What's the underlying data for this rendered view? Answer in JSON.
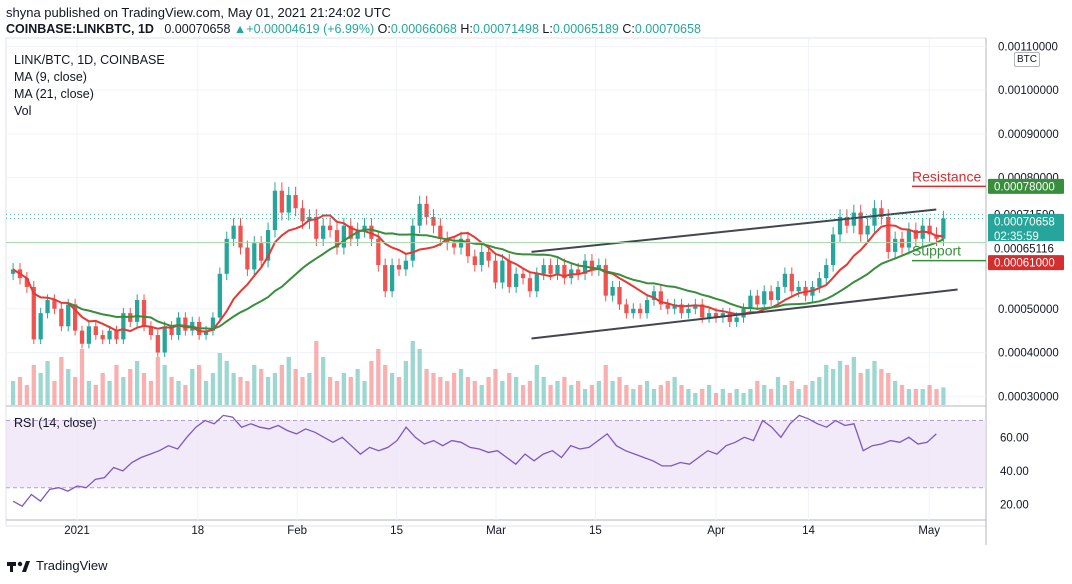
{
  "header": {
    "published": "shyna published on TradingView.com, May 01, 2021 21:24:02 UTC",
    "symbol_line": "COINBASE:LINKBTC, 1D",
    "last": "0.00070658",
    "change": "+0.00004619 (+6.99%)",
    "o_label": "O:",
    "o": "0.00066068",
    "h_label": "H:",
    "h": "0.00071498",
    "l_label": "L:",
    "l": "0.00065189",
    "c_label": "C:",
    "c": "0.00070658"
  },
  "legend": {
    "title": "LINK/BTC, 1D, COINBASE",
    "ma9": "MA (9, close)",
    "ma21": "MA (21, close)",
    "vol": "Vol",
    "rsi": "RSI (14, close)"
  },
  "currency_box": "BTC",
  "footer": {
    "brand": "TradingView"
  },
  "colors": {
    "up": "#26a69a",
    "down": "#ef5350",
    "ma9": "#e53935",
    "ma21": "#388e3c",
    "trendline": "#434651",
    "rsi": "#7e57c2",
    "rsi_band": "#ede1f7",
    "resistance": "#d32f2f",
    "support": "#388e3c"
  },
  "chart_data": {
    "type": "candlestick",
    "y_axis": {
      "ticks": [
        {
          "value": 0.0011,
          "label": "0.00110000"
        },
        {
          "value": 0.001,
          "label": "0.00100000"
        },
        {
          "value": 0.0009,
          "label": "0.00090000"
        },
        {
          "value": 0.0008,
          "label": "0.00080000"
        },
        {
          "value": 0.0005,
          "label": "0.00050000"
        },
        {
          "value": 0.0004,
          "label": "0.00040000"
        },
        {
          "value": 0.0003,
          "label": "0.00030000"
        }
      ],
      "range": [
        0.00028,
        0.00111
      ]
    },
    "x_axis": {
      "range_days": [
        -10,
        128
      ],
      "ticks": [
        {
          "day": 0,
          "label": "2021"
        },
        {
          "day": 17,
          "label": "18"
        },
        {
          "day": 31,
          "label": "Feb"
        },
        {
          "day": 45,
          "label": "15"
        },
        {
          "day": 59,
          "label": "Mar"
        },
        {
          "day": 73,
          "label": "15"
        },
        {
          "day": 90,
          "label": "Apr"
        },
        {
          "day": 103,
          "label": "14"
        },
        {
          "day": 120,
          "label": "May"
        }
      ]
    },
    "price_badges": [
      {
        "value": 0.00078,
        "label": "0.00078000",
        "bg": "#388e3c",
        "fg": "#ffffff"
      },
      {
        "value": 0.0007159,
        "label": "0.00071590",
        "bg": "#ffffff",
        "fg": "#131722"
      },
      {
        "value": 0.00070658,
        "label": "0.00070658",
        "sub": "02:35:59",
        "bg": "#26a69a",
        "fg": "#ffffff"
      },
      {
        "value": 0.00065116,
        "label": "0.00065116",
        "bg": "#ffffff",
        "fg": "#131722"
      },
      {
        "value": 0.00061,
        "label": "0.00061000",
        "bg": "#d32f2f",
        "fg": "#ffffff"
      }
    ],
    "annotations": [
      {
        "text": "Resistance",
        "value": 0.00078,
        "color": "#d32f2f"
      },
      {
        "text": "Support",
        "value": 0.00061,
        "color": "#388e3c"
      }
    ],
    "trendlines": [
      {
        "from": {
          "day": 64,
          "value": 0.00063
        },
        "to": {
          "day": 121,
          "value": 0.000727
        }
      },
      {
        "from": {
          "day": 64,
          "value": 0.000432
        },
        "to": {
          "day": 124,
          "value": 0.000544
        }
      }
    ],
    "candles": [
      [
        0.00058,
        0.00059
      ],
      [
        0.00059,
        0.00057
      ],
      [
        0.00057,
        0.00055
      ],
      [
        0.00055,
        0.00043
      ],
      [
        0.00043,
        0.00049
      ],
      [
        0.00049,
        0.00052
      ],
      [
        0.00052,
        0.0005
      ],
      [
        0.0005,
        0.00046
      ],
      [
        0.00046,
        0.00051
      ],
      [
        0.00051,
        0.00045
      ],
      [
        0.00045,
        0.00042
      ],
      [
        0.00042,
        0.00046
      ],
      [
        0.00046,
        0.00044
      ],
      [
        0.00044,
        0.00043
      ],
      [
        0.00043,
        0.00045
      ],
      [
        0.00045,
        0.00043
      ],
      [
        0.00043,
        0.00049
      ],
      [
        0.00049,
        0.00047
      ],
      [
        0.00047,
        0.00052
      ],
      [
        0.00052,
        0.00046
      ],
      [
        0.00046,
        0.00044
      ],
      [
        0.00044,
        0.0004
      ],
      [
        0.0004,
        0.00046
      ],
      [
        0.00046,
        0.00044
      ],
      [
        0.00044,
        0.00048
      ],
      [
        0.00048,
        0.00045
      ],
      [
        0.00045,
        0.00047
      ],
      [
        0.00047,
        0.00044
      ],
      [
        0.00044,
        0.00045
      ],
      [
        0.00045,
        0.00048
      ],
      [
        0.00048,
        0.00058
      ],
      [
        0.00058,
        0.00066
      ],
      [
        0.00066,
        0.00069
      ],
      [
        0.00069,
        0.00064
      ],
      [
        0.00064,
        0.00059
      ],
      [
        0.00059,
        0.00065
      ],
      [
        0.00065,
        0.00061
      ],
      [
        0.00061,
        0.00068
      ],
      [
        0.00068,
        0.00077
      ],
      [
        0.00077,
        0.00072
      ],
      [
        0.00072,
        0.00076
      ],
      [
        0.00076,
        0.00073
      ],
      [
        0.00073,
        0.0007
      ],
      [
        0.0007,
        0.00071
      ],
      [
        0.00071,
        0.00066
      ],
      [
        0.00066,
        0.00069
      ],
      [
        0.00069,
        0.00068
      ],
      [
        0.00068,
        0.00064
      ],
      [
        0.00064,
        0.00069
      ],
      [
        0.00069,
        0.00066
      ],
      [
        0.00066,
        0.00068
      ],
      [
        0.00068,
        0.00069
      ],
      [
        0.00069,
        0.00066
      ],
      [
        0.00066,
        0.0006
      ],
      [
        0.0006,
        0.00054
      ],
      [
        0.00054,
        0.0006
      ],
      [
        0.0006,
        0.00059
      ],
      [
        0.00059,
        0.00061
      ],
      [
        0.00061,
        0.00069
      ],
      [
        0.00069,
        0.00074
      ],
      [
        0.00074,
        0.00071
      ],
      [
        0.00071,
        0.00069
      ],
      [
        0.00069,
        0.00066
      ],
      [
        0.00066,
        0.00065
      ],
      [
        0.00065,
        0.00064
      ],
      [
        0.00064,
        0.00066
      ],
      [
        0.00066,
        0.00062
      ],
      [
        0.00062,
        0.0006
      ],
      [
        0.0006,
        0.00063
      ],
      [
        0.00063,
        0.00061
      ],
      [
        0.00061,
        0.00056
      ],
      [
        0.00056,
        0.00061
      ],
      [
        0.00061,
        0.00055
      ],
      [
        0.00055,
        0.00058
      ],
      [
        0.00058,
        0.00057
      ],
      [
        0.00057,
        0.00054
      ],
      [
        0.00054,
        0.00058
      ],
      [
        0.00058,
        0.0006
      ],
      [
        0.0006,
        0.00058
      ],
      [
        0.00058,
        0.0006
      ],
      [
        0.0006,
        0.00057
      ],
      [
        0.00057,
        0.00059
      ],
      [
        0.00059,
        0.00058
      ],
      [
        0.00058,
        0.00061
      ],
      [
        0.00061,
        0.00059
      ],
      [
        0.00059,
        0.0006
      ],
      [
        0.0006,
        0.00053
      ],
      [
        0.00053,
        0.00055
      ],
      [
        0.00055,
        0.00051
      ],
      [
        0.00051,
        0.00049
      ],
      [
        0.00049,
        0.0005
      ],
      [
        0.0005,
        0.00049
      ],
      [
        0.00049,
        0.00052
      ],
      [
        0.00052,
        0.00054
      ],
      [
        0.00054,
        0.00051
      ],
      [
        0.00051,
        0.0005
      ],
      [
        0.0005,
        0.00051
      ],
      [
        0.00051,
        0.00049
      ],
      [
        0.00049,
        0.0005
      ],
      [
        0.0005,
        0.00051
      ],
      [
        0.00051,
        0.00048
      ],
      [
        0.00048,
        0.00049
      ],
      [
        0.00049,
        0.00048
      ],
      [
        0.00048,
        0.00049
      ],
      [
        0.00049,
        0.00047
      ],
      [
        0.00047,
        0.00048
      ],
      [
        0.00048,
        0.0005
      ],
      [
        0.0005,
        0.00053
      ],
      [
        0.00053,
        0.00051
      ],
      [
        0.00051,
        0.00054
      ],
      [
        0.00054,
        0.00052
      ],
      [
        0.00052,
        0.00055
      ],
      [
        0.00055,
        0.00058
      ],
      [
        0.00058,
        0.00054
      ],
      [
        0.00054,
        0.00055
      ],
      [
        0.00055,
        0.00053
      ],
      [
        0.00053,
        0.00055
      ],
      [
        0.00055,
        0.00057
      ],
      [
        0.00057,
        0.0006
      ],
      [
        0.0006,
        0.00067
      ],
      [
        0.00067,
        0.00071
      ],
      [
        0.00071,
        0.00069
      ],
      [
        0.00069,
        0.00072
      ],
      [
        0.00072,
        0.00067
      ],
      [
        0.00067,
        0.00069
      ],
      [
        0.00069,
        0.00073
      ],
      [
        0.00073,
        0.00071
      ],
      [
        0.00071,
        0.00063
      ],
      [
        0.00063,
        0.00066
      ],
      [
        0.00066,
        0.00064
      ],
      [
        0.00064,
        0.00068
      ],
      [
        0.00068,
        0.00066
      ],
      [
        0.00066,
        0.00069
      ],
      [
        0.00069,
        0.00067
      ],
      [
        0.00067,
        0.00066
      ],
      [
        0.00066,
        0.00070658
      ]
    ],
    "volume": [
      0.3,
      0.35,
      0.25,
      0.5,
      0.4,
      0.55,
      0.3,
      0.6,
      0.45,
      0.35,
      0.7,
      0.3,
      0.25,
      0.4,
      0.3,
      0.5,
      0.35,
      0.45,
      0.55,
      0.4,
      0.3,
      0.6,
      0.5,
      0.35,
      0.3,
      0.25,
      0.45,
      0.5,
      0.3,
      0.4,
      0.65,
      0.55,
      0.4,
      0.35,
      0.3,
      0.5,
      0.45,
      0.35,
      0.4,
      0.5,
      0.6,
      0.45,
      0.35,
      0.4,
      0.8,
      0.6,
      0.35,
      0.3,
      0.4,
      0.35,
      0.45,
      0.3,
      0.55,
      0.7,
      0.5,
      0.4,
      0.35,
      0.55,
      0.8,
      0.7,
      0.45,
      0.4,
      0.35,
      0.3,
      0.4,
      0.45,
      0.35,
      0.3,
      0.25,
      0.35,
      0.45,
      0.3,
      0.4,
      0.35,
      0.25,
      0.3,
      0.5,
      0.35,
      0.25,
      0.3,
      0.35,
      0.25,
      0.3,
      0.2,
      0.25,
      0.3,
      0.5,
      0.3,
      0.35,
      0.25,
      0.2,
      0.25,
      0.3,
      0.2,
      0.25,
      0.3,
      0.35,
      0.25,
      0.2,
      0.15,
      0.2,
      0.25,
      0.15,
      0.2,
      0.15,
      0.2,
      0.15,
      0.2,
      0.3,
      0.25,
      0.2,
      0.35,
      0.25,
      0.3,
      0.2,
      0.25,
      0.3,
      0.35,
      0.5,
      0.45,
      0.55,
      0.5,
      0.6,
      0.4,
      0.45,
      0.55,
      0.45,
      0.4,
      0.3,
      0.25,
      0.2,
      0.2,
      0.2,
      0.25,
      0.2,
      0.22
    ],
    "rsi": {
      "y_ticks": [
        {
          "value": 60,
          "label": "60.00"
        },
        {
          "value": 40,
          "label": "40.00"
        },
        {
          "value": 20,
          "label": "20.00"
        }
      ],
      "range": [
        12,
        78
      ],
      "band": [
        30,
        70
      ],
      "values": [
        22,
        19,
        26,
        22,
        29,
        30,
        28,
        31,
        30,
        35,
        36,
        42,
        40,
        45,
        48,
        50,
        52,
        55,
        53,
        60,
        66,
        70,
        68,
        73,
        72,
        66,
        68,
        66,
        65,
        67,
        64,
        62,
        65,
        63,
        60,
        57,
        60,
        55,
        50,
        54,
        52,
        54,
        58,
        66,
        60,
        56,
        58,
        55,
        58,
        57,
        54,
        53,
        51,
        52,
        48,
        44,
        50,
        46,
        50,
        52,
        48,
        55,
        53,
        54,
        58,
        62,
        55,
        52,
        50,
        48,
        46,
        43,
        43,
        45,
        44,
        48,
        52,
        50,
        55,
        57,
        60,
        58,
        70,
        66,
        60,
        68,
        73,
        71,
        68,
        66,
        70,
        67,
        68,
        52,
        55,
        56,
        58,
        57,
        60,
        56,
        57,
        62
      ]
    }
  }
}
